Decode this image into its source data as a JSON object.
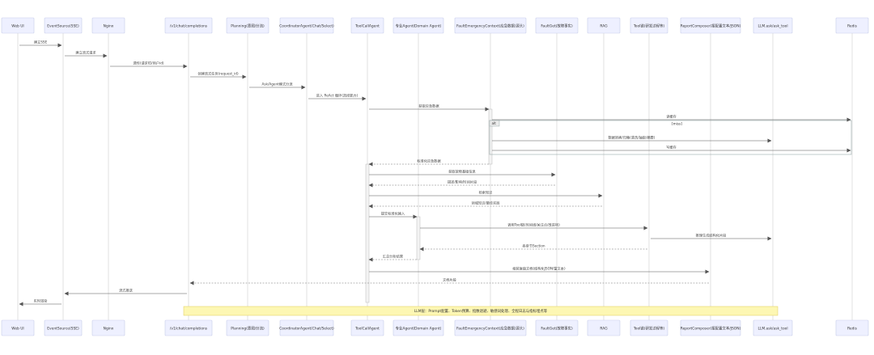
{
  "participants": [
    "Web UI",
    "EventSource(SSE)",
    "Nginx",
    "/v1/chat/completions",
    "Planning(意图/分流)",
    "CoordinatorAgent(Chat/Select)",
    "ToolCallAgent",
    "专业Agent(Domain Agent)",
    "FaultEmergencyContext(应急数据/源头)",
    "FaultGet(故障事实)",
    "RAG",
    "Tool链(研发过程等)",
    "ReportComposer(报配置文本/JSON)",
    "LLM.ask/ask_tool",
    "Redis"
  ],
  "messages": [
    {
      "from": 0,
      "to": 1,
      "label": "建立SSE",
      "dashed": false
    },
    {
      "from": 1,
      "to": 2,
      "label": "建立流式请求",
      "dashed": false
    },
    {
      "from": 2,
      "to": 3,
      "label": "透传(请求ID/用户id)",
      "dashed": false
    },
    {
      "from": 3,
      "to": 4,
      "label": "创建流式任务(request_id)",
      "dashed": false
    },
    {
      "from": 4,
      "to": 5,
      "label": "Ask/Agent模式分流",
      "dashed": false
    },
    {
      "from": 5,
      "to": 6,
      "label": "进入 ReAct 循环(选择能力)",
      "dashed": false
    },
    {
      "from": 6,
      "to": 8,
      "label": "获取应急数据",
      "dashed": false
    },
    {
      "from": 8,
      "to": 14,
      "label": "读缓存",
      "dashed": false
    },
    {
      "from": 8,
      "to": 13,
      "label": "数据转换/归集(清洗/抽取/摘要)",
      "dashed": false
    },
    {
      "from": 8,
      "to": 14,
      "label": "写缓存",
      "dashed": false
    },
    {
      "from": 8,
      "to": 6,
      "label": "标准化应急数据",
      "dashed": true
    },
    {
      "from": 6,
      "to": 9,
      "label": "获取故障基础信息",
      "dashed": false
    },
    {
      "from": 9,
      "to": 6,
      "label": "描述/影响/时间片段",
      "dashed": true
    },
    {
      "from": 6,
      "to": 10,
      "label": "检索知识",
      "dashed": false
    },
    {
      "from": 10,
      "to": 6,
      "label": "领域知识/最佳实践",
      "dashed": true
    },
    {
      "from": 6,
      "to": 7,
      "label": "提交标准化输入",
      "dashed": false
    },
    {
      "from": 7,
      "to": 11,
      "label": "调用Tool链(时间线/关注点/改进项)",
      "dashed": false
    },
    {
      "from": 11,
      "to": 13,
      "label": "推理生成结构化片段",
      "dashed": false
    },
    {
      "from": 11,
      "to": 7,
      "label": "各章节Section",
      "dashed": true
    },
    {
      "from": 7,
      "to": 6,
      "label": "汇总分析结果",
      "dashed": true
    },
    {
      "from": 6,
      "to": 12,
      "label": "组装复盘文档(结构化JSON/富文本)",
      "dashed": false
    },
    {
      "from": 12,
      "to": 3,
      "label": "文档片段",
      "dashed": true
    },
    {
      "from": 3,
      "to": 1,
      "label": "流式推送",
      "dashed": false
    },
    {
      "from": 1,
      "to": 0,
      "label": "实时渲染",
      "dashed": false
    }
  ],
  "alt_frame": {
    "tag": "alt",
    "condition": "[miss]"
  },
  "note": "LLM层：Prompt配置、Token预算、指数退避、敏感词处理、全程日志与指标埋点等"
}
